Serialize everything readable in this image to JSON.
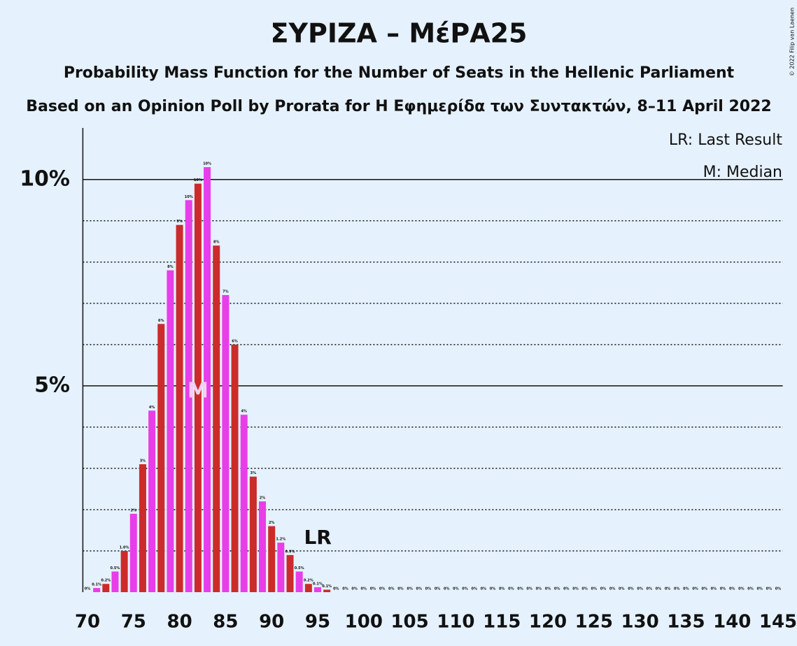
{
  "chart_data": {
    "type": "bar",
    "title": "ΣΥΡΙΖΑ – ΜέΡΑ25",
    "subtitle": "Probability Mass Function for the Number of Seats in the Hellenic Parliament",
    "subtitle2": "Based on an Opinion Poll by Prorata for Η Εφημερίδα των Συντακτών, 8–11 April 2022",
    "copyright": "© 2022 Filip van Laenen",
    "legend": [
      "LR: Last Result",
      "M: Median"
    ],
    "x": [
      70,
      71,
      72,
      73,
      74,
      75,
      76,
      77,
      78,
      79,
      80,
      81,
      82,
      83,
      84,
      85,
      86,
      87,
      88,
      89,
      90,
      91,
      92,
      93,
      94,
      95,
      96,
      97,
      98,
      99,
      100,
      101,
      102,
      103,
      104,
      105,
      106,
      107,
      108,
      109,
      110,
      111,
      112,
      113,
      114,
      115,
      116,
      117,
      118,
      119,
      120,
      121,
      122,
      123,
      124,
      125,
      126,
      127,
      128,
      129,
      130,
      131,
      132,
      133,
      134,
      135,
      136,
      137,
      138,
      139,
      140,
      141,
      142,
      143,
      144,
      145
    ],
    "values": [
      0,
      0.1,
      0.2,
      0.5,
      1.0,
      1.9,
      3.1,
      4.4,
      6.5,
      7.8,
      8.9,
      9.5,
      9.9,
      10.3,
      8.4,
      7.2,
      6.0,
      4.3,
      2.8,
      2.2,
      1.6,
      1.2,
      0.9,
      0.5,
      0.2,
      0.12,
      0.06,
      0,
      0,
      0,
      0,
      0,
      0,
      0,
      0,
      0,
      0,
      0,
      0,
      0,
      0,
      0,
      0,
      0,
      0,
      0,
      0,
      0,
      0,
      0,
      0,
      0,
      0,
      0,
      0,
      0,
      0,
      0,
      0,
      0,
      0,
      0,
      0,
      0,
      0,
      0,
      0,
      0,
      0,
      0,
      0,
      0,
      0,
      0,
      0,
      0
    ],
    "value_labels": [
      "0%",
      "0.1%",
      "0.2%",
      "0.5%",
      "1.0%",
      "2%",
      "3%",
      "4%",
      "6%",
      "8%",
      "9%",
      "10%",
      "10%",
      "10%",
      "8%",
      "7%",
      "6%",
      "4%",
      "3%",
      "2%",
      "2%",
      "1.2%",
      "0.9%",
      "0.5%",
      "0.2%",
      "0.1%",
      "0.1%",
      "0%",
      "0%",
      "0%",
      "0%",
      "0%",
      "0%",
      "0%",
      "0%",
      "0%",
      "0%",
      "0%",
      "0%",
      "0%",
      "0%",
      "0%",
      "0%",
      "0%",
      "0%",
      "0%",
      "0%",
      "0%",
      "0%",
      "0%",
      "0%",
      "0%",
      "0%",
      "0%",
      "0%",
      "0%",
      "0%",
      "0%",
      "0%",
      "0%",
      "0%",
      "0%",
      "0%",
      "0%",
      "0%",
      "0%",
      "0%",
      "0%",
      "0%",
      "0%",
      "0%",
      "0%",
      "0%",
      "0%",
      "0%",
      "0%"
    ],
    "colors": [
      "#cc2b2b",
      "#e83ee8"
    ],
    "median": 82,
    "median_label": "M",
    "last_result": 96,
    "last_result_label": "LR",
    "xlim": [
      69.5,
      145.5
    ],
    "xticks": [
      70,
      75,
      80,
      85,
      90,
      95,
      100,
      105,
      110,
      115,
      120,
      125,
      130,
      135,
      140,
      145
    ],
    "ylim": [
      0,
      11.25
    ],
    "yticks": [
      {
        "value": 5,
        "label": "5%"
      },
      {
        "value": 10,
        "label": "10%"
      }
    ],
    "minor_yticks": [
      1,
      2,
      3,
      4,
      6,
      7,
      8,
      9
    ],
    "grid": true
  }
}
